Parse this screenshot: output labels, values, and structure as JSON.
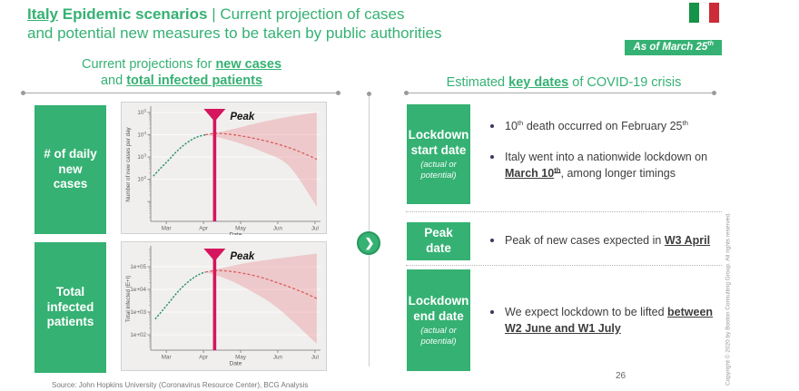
{
  "slide": {
    "title": {
      "keyword": "Italy",
      "bold": "Epidemic scenarios",
      "separator": "|",
      "rest_line1": "Current projection of cases",
      "rest_line2": "and potential new measures to be taken by public authorities"
    },
    "badge": {
      "text": "As of March 25",
      "sup": "th"
    },
    "page_number": "26",
    "copyright": "Copyright © 2020 by Boston Consulting Group. All rights reserved.",
    "source": "Source:  John Hopkins University (Coronavirus Resource Center), BCG Analysis"
  },
  "left_panel": {
    "header": {
      "prefix1": "Current projections for ",
      "em1": "new cases",
      "prefix2": "and ",
      "em2": "total infected patients"
    },
    "row_labels": [
      "# of daily new cases",
      "Total infected patients"
    ]
  },
  "right_panel": {
    "header": {
      "prefix": "Estimated ",
      "em": "key dates",
      "suffix": " of COVID-19 crisis"
    },
    "rows": [
      {
        "title": "Lockdown start date",
        "sub": "(actual or potential)",
        "bullets": [
          [
            {
              "t": "10"
            },
            {
              "t": "th",
              "sup": true
            },
            {
              "t": " death occurred on February 25"
            },
            {
              "t": "th",
              "sup": true
            }
          ],
          [
            {
              "t": "Italy went into a nationwide lockdown on "
            },
            {
              "t": "March 10",
              "b": true,
              "u": true
            },
            {
              "t": "th",
              "b": true,
              "u": true,
              "sup": true
            },
            {
              "t": ", among longer timings"
            }
          ]
        ]
      },
      {
        "title": "Peak date",
        "sub": "",
        "bullets": [
          [
            {
              "t": "Peak of new cases expected in "
            },
            {
              "t": "W3 April",
              "b": true,
              "u": true
            }
          ]
        ]
      },
      {
        "title": "Lockdown end date",
        "sub": "(actual or potential)",
        "bullets": [
          [
            {
              "t": "We expect lockdown to be lifted "
            },
            {
              "t": "between W2 June and W1 July",
              "b": true,
              "u": true
            }
          ]
        ]
      }
    ]
  },
  "colors": {
    "green": "#35b173",
    "flag_green": "#159347",
    "flag_white": "#ffffff",
    "flag_red": "#cd2b37",
    "peak": "#d5155e",
    "observed": "#2f9270",
    "projection": "#dc5a5a",
    "band": "rgba(231,112,122,0.30)"
  },
  "chart_data": [
    {
      "type": "line",
      "title": "",
      "ylabel": "Number of new cases per day",
      "xlabel": "Date",
      "log_y": true,
      "xlim": [
        -0.42,
        4.15
      ],
      "ylim": [
        1.3,
        160000
      ],
      "x_ticks": [
        {
          "v": 0,
          "label": "Mar"
        },
        {
          "v": 1,
          "label": "Apr"
        },
        {
          "v": 2,
          "label": "May"
        },
        {
          "v": 3,
          "label": "Jun"
        },
        {
          "v": 4,
          "label": "Jul"
        }
      ],
      "y_ticks": [
        {
          "v": 100,
          "label": "10^2"
        },
        {
          "v": 1000,
          "label": "10^3"
        },
        {
          "v": 10000,
          "label": "10^4"
        },
        {
          "v": 100000,
          "label": "10^5"
        }
      ],
      "peak": {
        "x": 1.3,
        "label": "Peak"
      },
      "series": [
        {
          "name": "observed cases",
          "points": [
            [
              -0.35,
              140
            ],
            [
              -0.15,
              320
            ],
            [
              0.05,
              700
            ],
            [
              0.25,
              1600
            ],
            [
              0.45,
              3200
            ],
            [
              0.65,
              5600
            ],
            [
              0.85,
              8200
            ],
            [
              1.05,
              10000
            ]
          ]
        },
        {
          "name": "projected cases",
          "points": [
            [
              1.05,
              10000
            ],
            [
              1.3,
              11500
            ],
            [
              1.6,
              11000
            ],
            [
              2.0,
              9000
            ],
            [
              2.5,
              6200
            ],
            [
              3.0,
              3800
            ],
            [
              3.5,
              2000
            ],
            [
              4.05,
              800
            ]
          ]
        }
      ],
      "band": {
        "upper": [
          [
            1.05,
            10000
          ],
          [
            1.5,
            14000
          ],
          [
            2.0,
            22000
          ],
          [
            2.6,
            38000
          ],
          [
            3.3,
            65000
          ],
          [
            4.05,
            100000
          ]
        ],
        "lower": [
          [
            1.05,
            10000
          ],
          [
            1.5,
            7000
          ],
          [
            2.0,
            4000
          ],
          [
            2.6,
            1700
          ],
          [
            3.3,
            400
          ],
          [
            4.05,
            6
          ]
        ]
      }
    },
    {
      "type": "line",
      "title": "",
      "ylabel": "Total infected (E+I)",
      "xlabel": "Date",
      "log_y": true,
      "xlim": [
        -0.42,
        4.15
      ],
      "ylim": [
        21,
        690000
      ],
      "x_ticks": [
        {
          "v": 0,
          "label": "Mar"
        },
        {
          "v": 1,
          "label": "Apr"
        },
        {
          "v": 2,
          "label": "May"
        },
        {
          "v": 3,
          "label": "Jun"
        },
        {
          "v": 4,
          "label": "Jul"
        }
      ],
      "y_ticks": [
        {
          "v": 100,
          "label": "1e+02"
        },
        {
          "v": 1000,
          "label": "1e+03"
        },
        {
          "v": 10000,
          "label": "1e+04"
        },
        {
          "v": 100000,
          "label": "1e+05"
        }
      ],
      "peak": {
        "x": 1.3,
        "label": "Peak"
      },
      "series": [
        {
          "name": "observed total infected",
          "points": [
            [
              -0.3,
              500
            ],
            [
              -0.1,
              1200
            ],
            [
              0.1,
              3000
            ],
            [
              0.3,
              7500
            ],
            [
              0.5,
              16000
            ],
            [
              0.7,
              30000
            ],
            [
              0.9,
              47000
            ],
            [
              1.05,
              58000
            ]
          ]
        },
        {
          "name": "projected total infected",
          "points": [
            [
              1.05,
              58000
            ],
            [
              1.35,
              68000
            ],
            [
              1.7,
              63000
            ],
            [
              2.1,
              50000
            ],
            [
              2.6,
              32000
            ],
            [
              3.1,
              17000
            ],
            [
              3.6,
              8500
            ],
            [
              4.05,
              4000
            ]
          ]
        }
      ],
      "band": {
        "upper": [
          [
            1.05,
            60000
          ],
          [
            1.6,
            95000
          ],
          [
            2.2,
            150000
          ],
          [
            3.0,
            230000
          ],
          [
            4.05,
            380000
          ]
        ],
        "lower": [
          [
            1.05,
            58000
          ],
          [
            1.6,
            30000
          ],
          [
            2.2,
            10000
          ],
          [
            3.0,
            1500
          ],
          [
            4.05,
            40
          ]
        ]
      }
    }
  ]
}
